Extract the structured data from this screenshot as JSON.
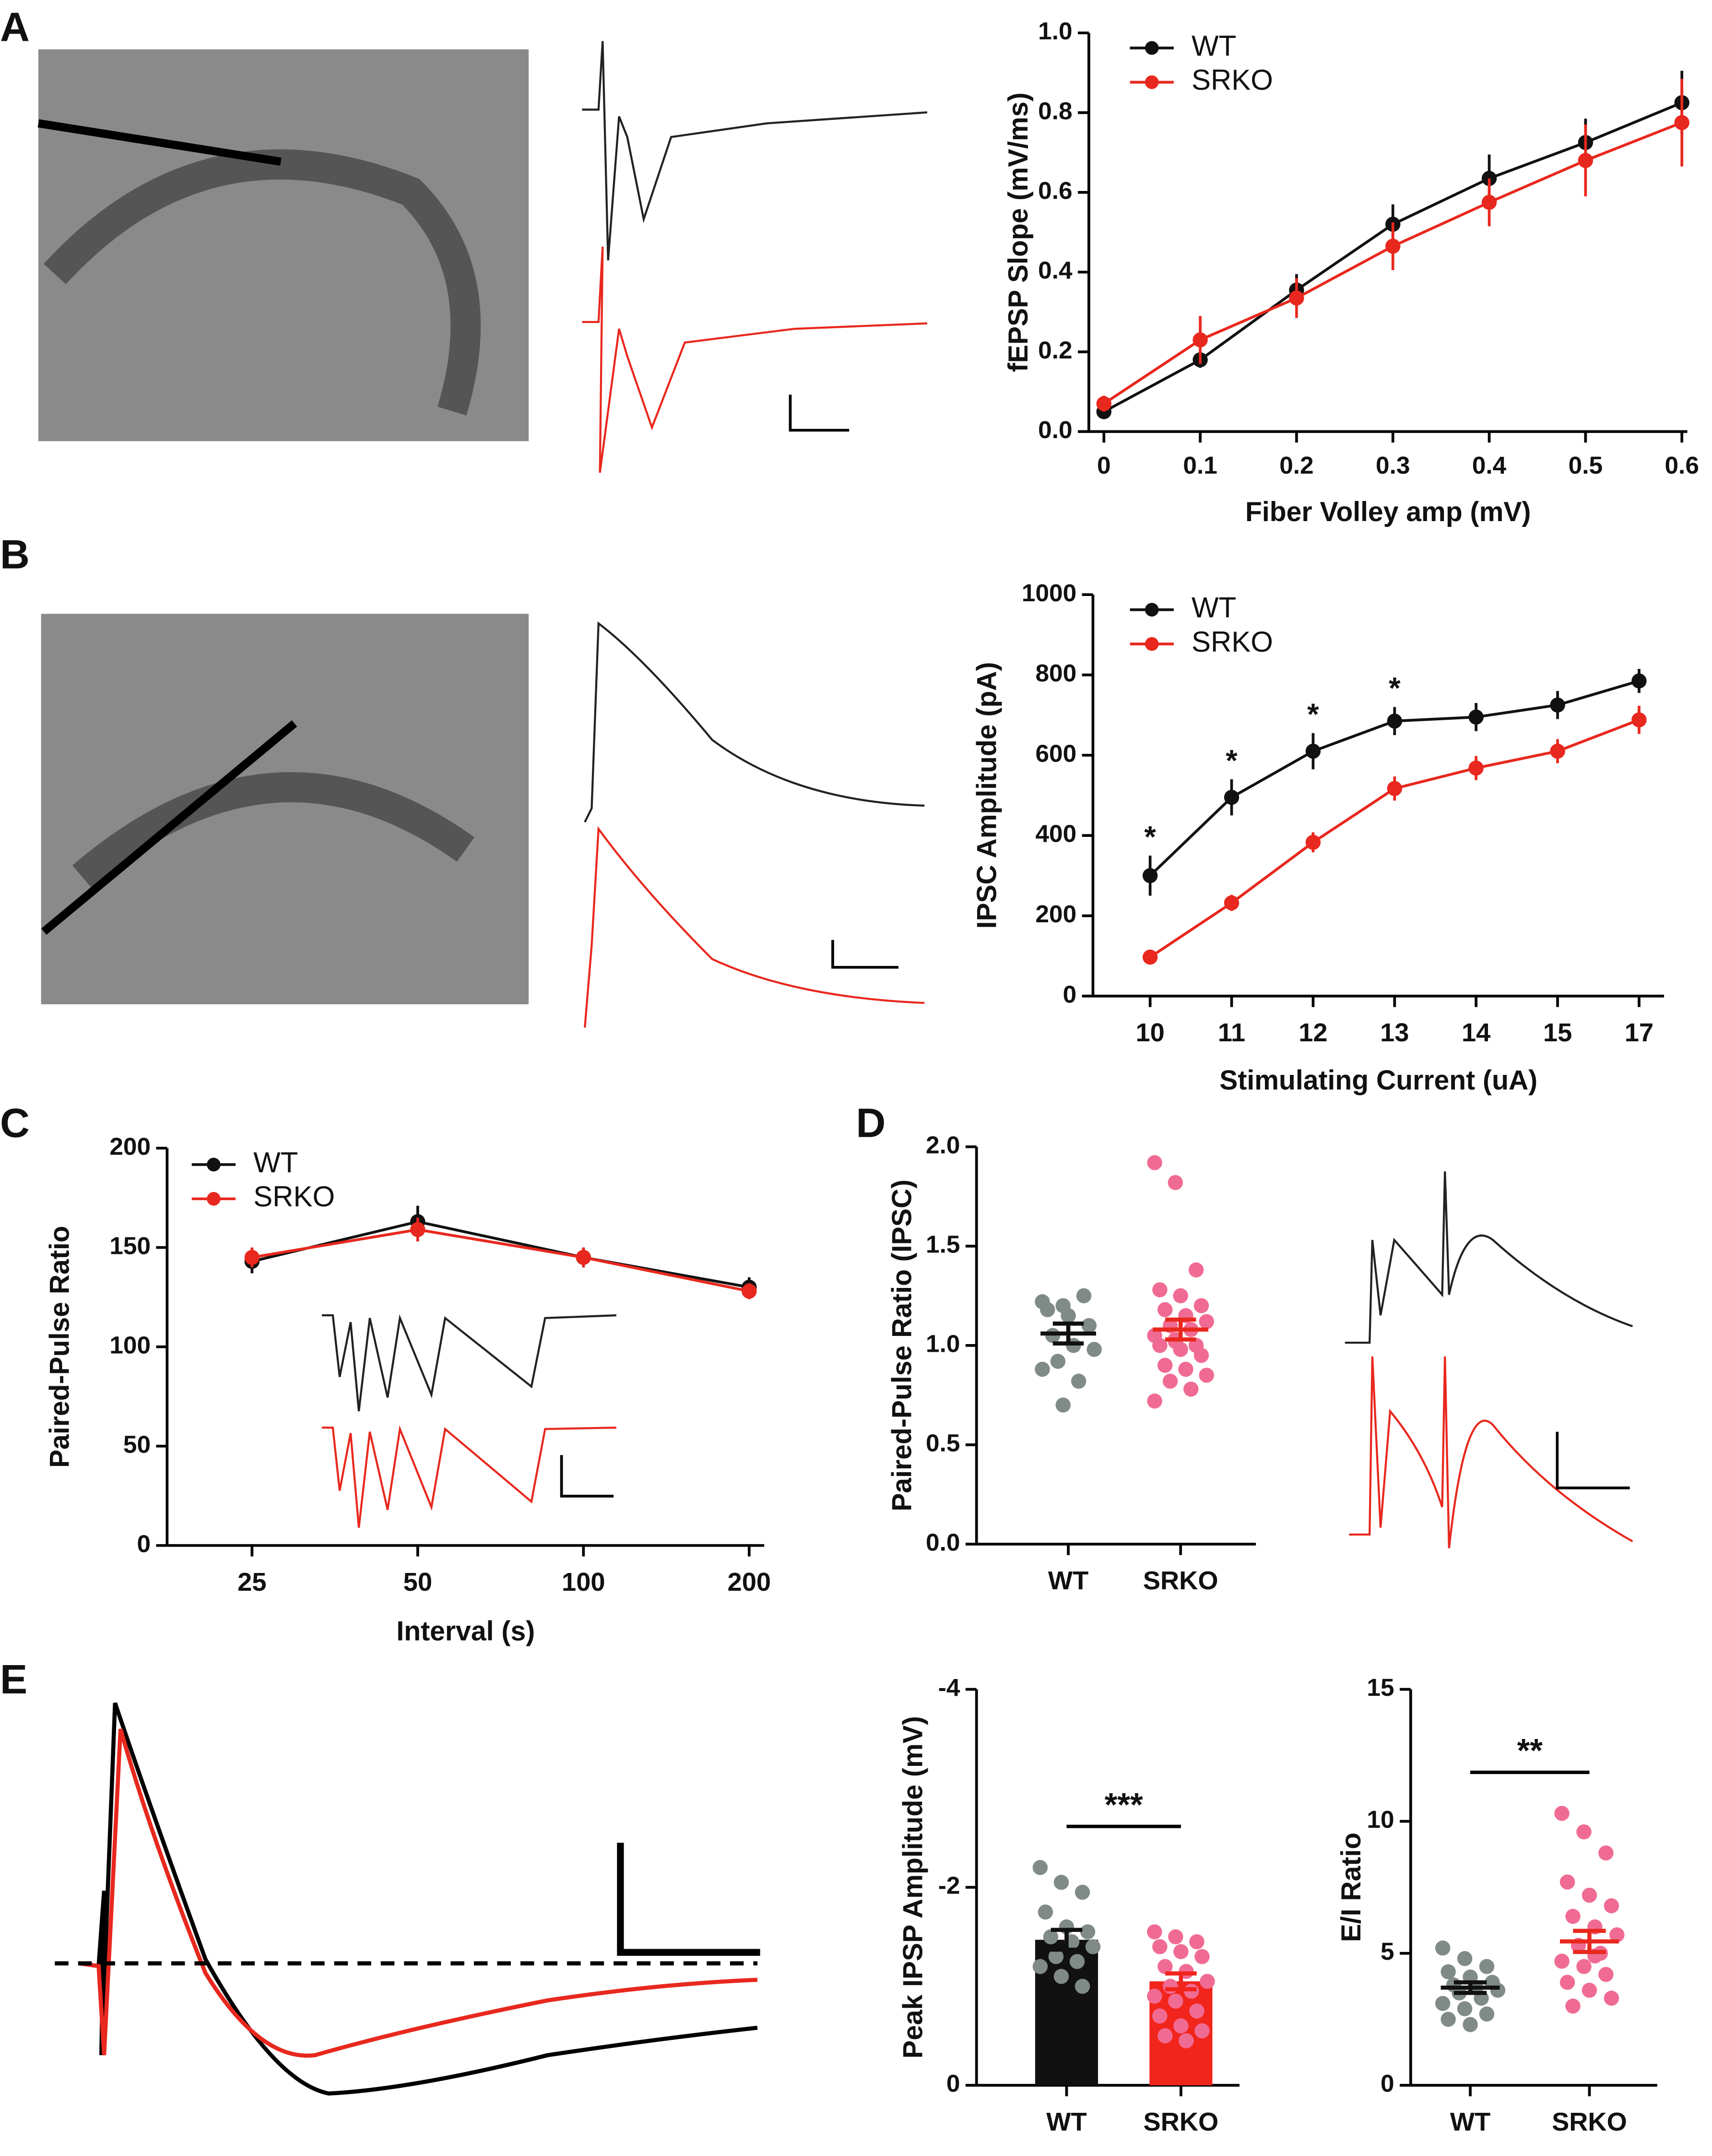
{
  "panel_labels": [
    "A",
    "B",
    "C",
    "D",
    "E"
  ],
  "chart_data": [
    {
      "type": "line",
      "xlabel": "Fiber Volley amp (mV)",
      "ylabel": "fEPSP Slope (mV/ms)",
      "legend": "upper left",
      "x": [
        0,
        0.1,
        0.2,
        0.3,
        0.4,
        0.5,
        0.6
      ],
      "xlim": [
        0,
        0.6
      ],
      "xticks": [
        0,
        0.1,
        0.2,
        0.3,
        0.4,
        0.5,
        0.6
      ],
      "ylim": [
        0,
        1
      ],
      "yticks": [
        {
          "value": 0,
          "label": "0.0"
        },
        0.2,
        0.4,
        0.6,
        0.8,
        {
          "value": 1,
          "label": "1.0"
        }
      ],
      "series": [
        {
          "name": "WT",
          "color": "#111111",
          "values": [
            0.05,
            0.18,
            0.355,
            0.52,
            0.635,
            0.725,
            0.825
          ],
          "errors": [
            0.01,
            0.02,
            0.04,
            0.05,
            0.06,
            0.06,
            0.08
          ]
        },
        {
          "name": "SRKO",
          "color": "#e8281e",
          "values": [
            0.07,
            0.23,
            0.335,
            0.465,
            0.575,
            0.68,
            0.775
          ],
          "errors": [
            0.02,
            0.06,
            0.05,
            0.06,
            0.06,
            0.09,
            0.11
          ]
        }
      ]
    },
    {
      "type": "line",
      "xlabel": "Stimulating Current (uA)",
      "ylabel": "IPSC Amplitude (pA)",
      "legend": "upper left",
      "categories": [
        "10",
        "11",
        "12",
        "13",
        "14",
        "15",
        "17"
      ],
      "ylim": [
        0,
        1000
      ],
      "yticks": [
        0,
        200,
        400,
        600,
        800,
        1000
      ],
      "significance": [
        "*",
        "*",
        "*",
        "*",
        null,
        null,
        null
      ],
      "series": [
        {
          "name": "WT",
          "color": "#111111",
          "values": [
            300,
            495,
            610,
            685,
            695,
            725,
            785
          ],
          "errors": [
            50,
            45,
            45,
            35,
            35,
            35,
            30
          ]
        },
        {
          "name": "SRKO",
          "color": "#e8281e",
          "values": [
            97,
            232,
            383,
            517,
            568,
            610,
            688
          ],
          "errors": [
            10,
            20,
            25,
            30,
            30,
            30,
            35
          ]
        }
      ]
    },
    {
      "type": "line",
      "xlabel": "Interval (s)",
      "ylabel": "Paired-Pulse Ratio",
      "legend": "upper left",
      "categories": [
        "25",
        "50",
        "100",
        "200"
      ],
      "ylim": [
        0,
        200
      ],
      "yticks": [
        0,
        50,
        100,
        150,
        200
      ],
      "series": [
        {
          "name": "WT",
          "color": "#111111",
          "values": [
            143,
            163,
            145,
            130
          ],
          "errors": [
            6,
            8,
            5,
            5
          ]
        },
        {
          "name": "SRKO",
          "color": "#e8281e",
          "values": [
            145,
            159,
            145,
            128
          ],
          "errors": [
            5,
            6,
            5,
            4
          ]
        }
      ]
    },
    {
      "type": "strip",
      "ylabel": "Paired-Pulse Ratio (IPSC)",
      "categories": [
        "WT",
        "SRKO"
      ],
      "ylim": [
        0,
        2
      ],
      "yticks": [
        {
          "value": 0,
          "label": "0.0"
        },
        0.5,
        {
          "value": 1,
          "label": "1.0"
        },
        1.5,
        {
          "value": 2,
          "label": "2.0"
        }
      ],
      "groups": [
        {
          "color": "#111111",
          "point_color": "#808b88",
          "mean": 1.06,
          "sem": 0.05,
          "values": [
            1.22,
            1.2,
            1.25,
            1.18,
            1.15,
            1.1,
            1.05,
            1.0,
            0.98,
            0.92,
            0.82,
            0.88,
            0.7
          ]
        },
        {
          "color": "#e8281e",
          "point_color": "#f06b93",
          "mean": 1.08,
          "sem": 0.05,
          "values": [
            1.92,
            1.82,
            1.38,
            1.28,
            1.25,
            1.2,
            1.18,
            1.15,
            1.12,
            1.1,
            1.08,
            1.05,
            1.03,
            1.0,
            1.0,
            0.98,
            0.95,
            0.9,
            0.88,
            0.85,
            0.82,
            0.78,
            0.72,
            1.02
          ]
        }
      ]
    },
    {
      "type": "bar",
      "ylabel": "Peak IPSP Amplitude (mV)",
      "categories": [
        "WT",
        "SRKO"
      ],
      "ylim": [
        0,
        -4
      ],
      "yticks": [
        0,
        -2,
        -4
      ],
      "significance": "***",
      "groups": [
        {
          "color": "#111111",
          "point_color": "#808b88",
          "mean": -1.47,
          "sem": 0.1,
          "values": [
            -2.2,
            -2.05,
            -1.95,
            -1.75,
            -1.6,
            -1.55,
            -1.5,
            -1.45,
            -1.4,
            -1.3,
            -1.25,
            -1.2,
            -1.1,
            -1.0
          ]
        },
        {
          "color": "#f2251c",
          "point_color": "#f06b93",
          "mean": -1.05,
          "sem": 0.08,
          "values": [
            -1.55,
            -1.5,
            -1.45,
            -1.4,
            -1.35,
            -1.3,
            -1.2,
            -1.15,
            -1.05,
            -1.0,
            -0.95,
            -0.9,
            -0.85,
            -0.75,
            -0.7,
            -0.6,
            -0.55,
            -0.5,
            -0.45
          ]
        }
      ]
    },
    {
      "type": "strip",
      "ylabel": "E/I Ratio",
      "categories": [
        "WT",
        "SRKO"
      ],
      "ylim": [
        0,
        15
      ],
      "yticks": [
        0,
        5,
        10,
        15
      ],
      "significance": "**",
      "groups": [
        {
          "color": "#111111",
          "point_color": "#808b88",
          "mean": 3.7,
          "sem": 0.2,
          "values": [
            5.2,
            4.8,
            4.5,
            4.3,
            4.1,
            3.9,
            3.8,
            3.7,
            3.6,
            3.5,
            3.3,
            3.1,
            2.9,
            2.7,
            2.5,
            2.3
          ]
        },
        {
          "color": "#e8281e",
          "point_color": "#f06b93",
          "mean": 5.45,
          "sem": 0.4,
          "values": [
            10.3,
            9.6,
            8.8,
            7.7,
            7.2,
            6.8,
            6.4,
            6.0,
            5.7,
            5.3,
            5.0,
            4.7,
            4.5,
            4.2,
            3.9,
            3.6,
            3.3,
            3.0,
            4.9
          ]
        }
      ]
    }
  ]
}
